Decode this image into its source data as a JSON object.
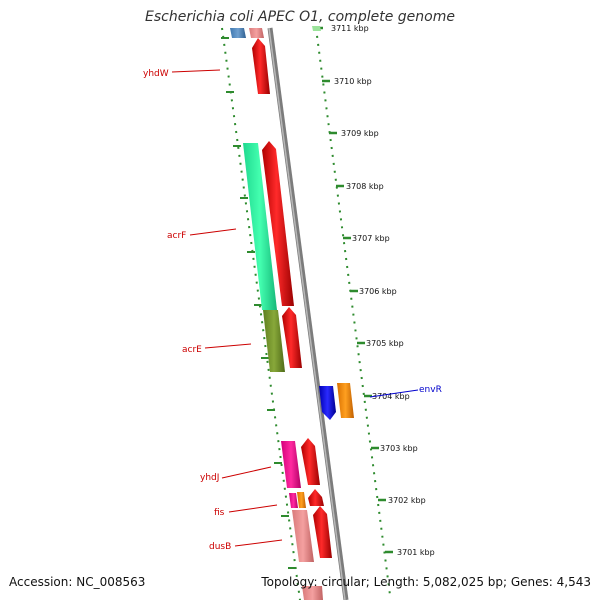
{
  "title": "Escherichia coli APEC O1, complete genome",
  "footer": {
    "accession": "Accession: NC_008563",
    "stats": "Topology: circular; Length: 5,082,025 bp; Genes: 4,543"
  },
  "ticks": [
    "3711 kbp",
    "3710 kbp",
    "3709 kbp",
    "3708 kbp",
    "3707 kbp",
    "3706 kbp",
    "3705 kbp",
    "3704 kbp",
    "3703 kbp",
    "3702 kbp",
    "3701 kbp"
  ],
  "genes": {
    "yhdW": "yhdW",
    "acrF": "acrF",
    "acrE": "acrE",
    "envR": "envR",
    "yhdJ": "yhdJ",
    "fis": "fis",
    "dusB": "dusB"
  },
  "colors": {
    "backbone": "#8a8a8a",
    "cds_forward": "#ff0000",
    "cds_reverse": "#0000ff",
    "tick": "#2e8b2e",
    "label_forward": "#cc0000",
    "label_reverse": "#0000cc"
  }
}
